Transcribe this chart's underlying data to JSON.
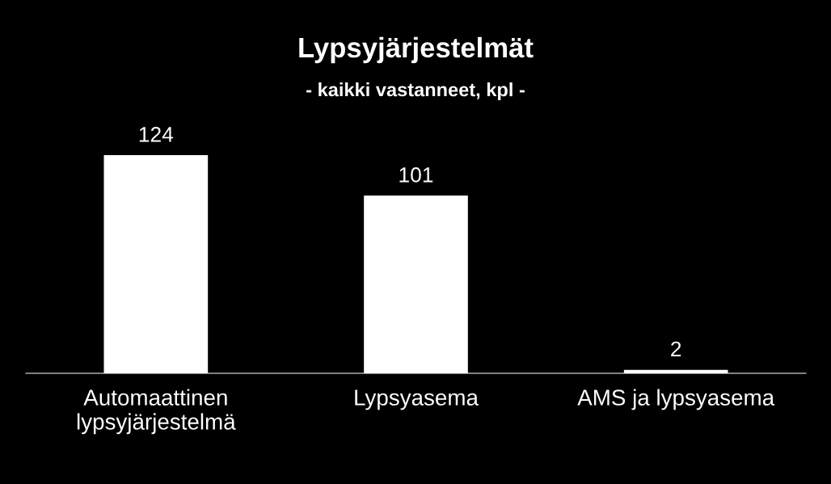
{
  "chart_data": {
    "type": "bar",
    "title": "Lypsyjärjestelmät",
    "subtitle": "- kaikki vastanneet, kpl -",
    "categories": [
      "Automaattinen\nlypsyjärjestelmä",
      "Lypsyasema",
      "AMS ja lypsyasema"
    ],
    "values": [
      124,
      101,
      2
    ],
    "color": "#ffffff",
    "data_labels": true,
    "grid": false,
    "legend": false,
    "tick_labels": "x"
  }
}
